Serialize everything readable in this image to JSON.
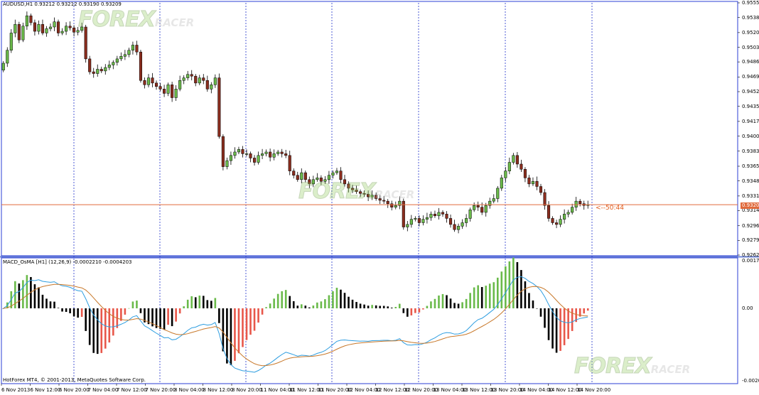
{
  "main_chart": {
    "header": "AUDUSD,H1  0.93212 0.93212 0.93190 0.93209",
    "price_axis": [
      "0.95550",
      "0.95380",
      "0.95205",
      "0.95035",
      "0.94865",
      "0.94690",
      "0.94520",
      "0.94350",
      "0.94175",
      "0.94005",
      "0.93830",
      "0.93655",
      "0.93485",
      "0.93310",
      "0.93140",
      "0.92965",
      "0.92795",
      "0.92625"
    ],
    "current_price": "0.93209",
    "countdown": "<--50:44",
    "colors": {
      "bull": "#6aba4a",
      "bear": "#8b2d1e",
      "wick": "#000000",
      "price_line": "#e06a3c",
      "grid": "#2233cc",
      "border": "#2b3fd6"
    }
  },
  "indicator": {
    "header": "MACD_OsMA [H1] (12,26,9) -0.0002210 -0.0004203",
    "axis": [
      "0.001715",
      "0.00",
      "-0.002096"
    ],
    "colors": {
      "hist_up": "#6aba4a",
      "hist_dn": "#000000",
      "hist_red": "#e8574a",
      "macd": "#2d9de0",
      "signal": "#c8782a"
    }
  },
  "time_axis": [
    "6 Nov 2013",
    "6 Nov 12:00",
    "6 Nov 20:00",
    "7 Nov 04:00",
    "7 Nov 12:00",
    "7 Nov 20:00",
    "8 Nov 04:00",
    "8 Nov 12:00",
    "8 Nov 20:00",
    "11 Nov 04:00",
    "11 Nov 12:00",
    "11 Nov 20:00",
    "12 Nov 04:00",
    "12 Nov 12:00",
    "12 Nov 20:00",
    "13 Nov 04:00",
    "13 Nov 12:00",
    "13 Nov 20:00",
    "14 Nov 04:00",
    "14 Nov 12:00",
    "14 Nov 20:00"
  ],
  "footer": "HotForex MT4, © 2001-2013, MetaQuotes Software Corp.",
  "watermark": {
    "brand": "FOREX",
    "suffix": "RACER"
  },
  "chart_data": {
    "type": "candlestick",
    "symbol": "AUDUSD",
    "timeframe": "H1",
    "ylim": [
      0.92625,
      0.9555
    ],
    "close_path": [
      0.9485,
      0.95,
      0.952,
      0.953,
      0.9512,
      0.9528,
      0.954,
      0.9532,
      0.9522,
      0.953,
      0.952,
      0.9525,
      0.9527,
      0.9533,
      0.952,
      0.9522,
      0.9528,
      0.9526,
      0.9521,
      0.9523,
      0.9527,
      0.949,
      0.9475,
      0.9473,
      0.9478,
      0.9476,
      0.948,
      0.9483,
      0.9486,
      0.949,
      0.9493,
      0.9495,
      0.95,
      0.9506,
      0.9498,
      0.9465,
      0.946,
      0.9468,
      0.9462,
      0.9458,
      0.9455,
      0.945,
      0.946,
      0.9445,
      0.9455,
      0.9465,
      0.9468,
      0.9472,
      0.947,
      0.9462,
      0.9468,
      0.9465,
      0.9455,
      0.946,
      0.9468,
      0.94,
      0.9365,
      0.9372,
      0.9378,
      0.9382,
      0.9385,
      0.938,
      0.938,
      0.9375,
      0.937,
      0.9378,
      0.938,
      0.9382,
      0.9376,
      0.938,
      0.9382,
      0.938,
      0.9378,
      0.936,
      0.9355,
      0.935,
      0.9358,
      0.935,
      0.9345,
      0.935,
      0.9352,
      0.9348,
      0.935,
      0.9355,
      0.9358,
      0.936,
      0.935,
      0.9345,
      0.934,
      0.9338,
      0.9336,
      0.9334,
      0.9333,
      0.933,
      0.9332,
      0.9328,
      0.9326,
      0.9325,
      0.9322,
      0.9318,
      0.932,
      0.9325,
      0.9295,
      0.9298,
      0.9304,
      0.9305,
      0.93,
      0.9304,
      0.9306,
      0.931,
      0.9308,
      0.9312,
      0.931,
      0.9305,
      0.9298,
      0.9292,
      0.9296,
      0.93,
      0.9305,
      0.9315,
      0.932,
      0.9318,
      0.9312,
      0.932,
      0.9325,
      0.9328,
      0.934,
      0.9352,
      0.936,
      0.937,
      0.9378,
      0.9368,
      0.9362,
      0.9352,
      0.9345,
      0.9348,
      0.9342,
      0.9335,
      0.932,
      0.9305,
      0.93,
      0.9298,
      0.9304,
      0.931,
      0.9312,
      0.9318,
      0.9325,
      0.9322,
      0.932,
      0.9321
    ]
  }
}
